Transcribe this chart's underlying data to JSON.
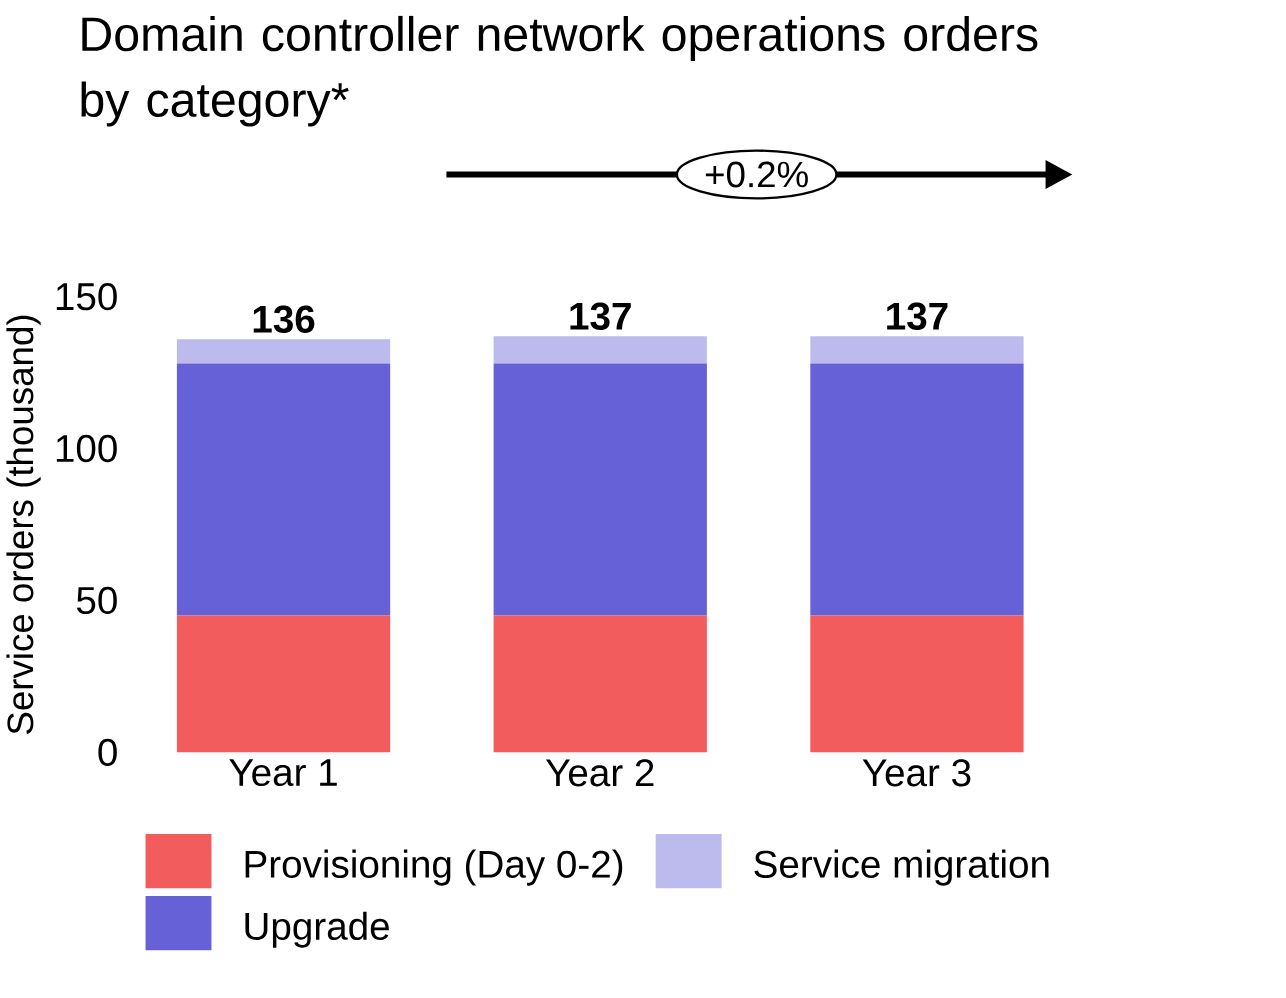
{
  "chart_data": {
    "type": "bar",
    "stacked": true,
    "title": "Domain controller network operations orders by category*",
    "ylabel": "Service orders (thousand)",
    "categories": [
      "Year 1",
      "Year 2",
      "Year 3"
    ],
    "series": [
      {
        "name": "Provisioning (Day 0-2)",
        "color": "#f25c5c",
        "values": [
          45,
          45,
          45
        ]
      },
      {
        "name": "Upgrade",
        "color": "#6661d6",
        "values": [
          83,
          83,
          83
        ]
      },
      {
        "name": "Service migration",
        "color": "#bdbbed",
        "values": [
          8,
          9,
          9
        ]
      }
    ],
    "totals": [
      "136",
      "137",
      "137"
    ],
    "ylim": [
      0,
      150
    ],
    "yticks": [
      0,
      50,
      100,
      150
    ],
    "annotations": [
      "+0.2%"
    ],
    "legend": "bottom",
    "grid": false
  }
}
